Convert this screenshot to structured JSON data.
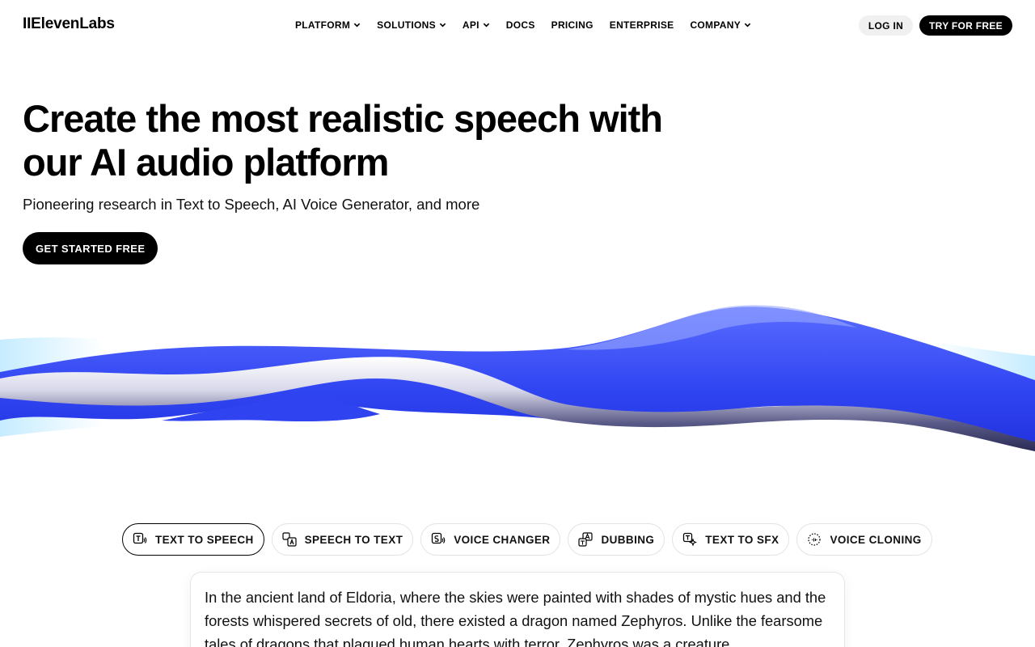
{
  "header": {
    "logo": "IIElevenLabs",
    "nav": [
      {
        "label": "PLATFORM",
        "dropdown": true
      },
      {
        "label": "SOLUTIONS",
        "dropdown": true
      },
      {
        "label": "API",
        "dropdown": true
      },
      {
        "label": "DOCS",
        "dropdown": false
      },
      {
        "label": "PRICING",
        "dropdown": false
      },
      {
        "label": "ENTERPRISE",
        "dropdown": false
      },
      {
        "label": "COMPANY",
        "dropdown": true
      }
    ],
    "login_label": "LOG IN",
    "try_label": "TRY FOR FREE"
  },
  "hero": {
    "title": "Create the most realistic speech with our AI audio platform",
    "subtitle": "Pioneering research in Text to Speech, AI Voice Generator, and more",
    "cta_label": "GET STARTED FREE"
  },
  "tabs": [
    {
      "label": "TEXT TO SPEECH",
      "icon": "text-to-speech-icon",
      "active": true
    },
    {
      "label": "SPEECH TO TEXT",
      "icon": "speech-to-text-icon",
      "active": false
    },
    {
      "label": "VOICE CHANGER",
      "icon": "voice-changer-icon",
      "active": false
    },
    {
      "label": "DUBBING",
      "icon": "dubbing-icon",
      "active": false
    },
    {
      "label": "TEXT TO SFX",
      "icon": "text-to-sfx-icon",
      "active": false
    },
    {
      "label": "VOICE CLONING",
      "icon": "voice-cloning-icon",
      "active": false
    }
  ],
  "panel": {
    "text": "In the ancient land of Eldoria, where the skies were painted with shades of mystic hues and the forests whispered secrets of old, there existed a dragon named Zephyros. Unlike the fearsome tales of dragons that plagued human hearts with terror, Zephyros was a creature"
  },
  "colors": {
    "accent_black": "#000000",
    "wave_blue": "#3b4cf6",
    "wave_light": "#a8e4ff"
  }
}
